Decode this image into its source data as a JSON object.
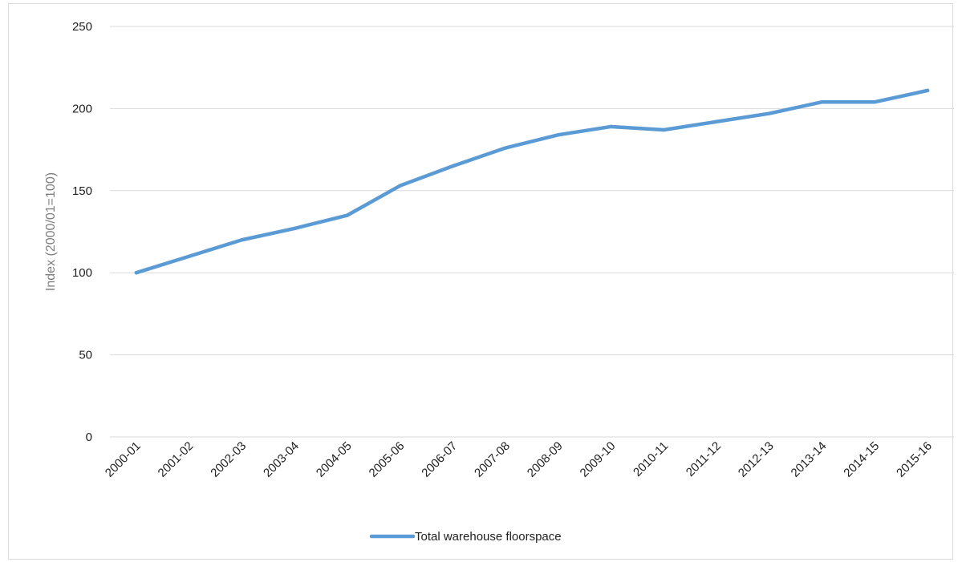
{
  "chart_data": {
    "type": "line",
    "title": "",
    "xlabel": "",
    "ylabel": "Index (2000/01=100)",
    "ylim": [
      0,
      250
    ],
    "yticks": [
      0,
      50,
      100,
      150,
      200,
      250
    ],
    "grid": true,
    "legend_position": "bottom",
    "categories": [
      "2000-01",
      "2001-02",
      "2002-03",
      "2003-04",
      "2004-05",
      "2005-06",
      "2006-07",
      "2007-08",
      "2008-09",
      "2009-10",
      "2010-11",
      "2011-12",
      "2012-13",
      "2013-14",
      "2014-15",
      "2015-16"
    ],
    "series": [
      {
        "name": "Total warehouse floorspace",
        "color": "#5b9bd5",
        "values": [
          100,
          110,
          120,
          127,
          135,
          153,
          165,
          176,
          184,
          189,
          187,
          192,
          197,
          204,
          204,
          211
        ]
      }
    ]
  }
}
